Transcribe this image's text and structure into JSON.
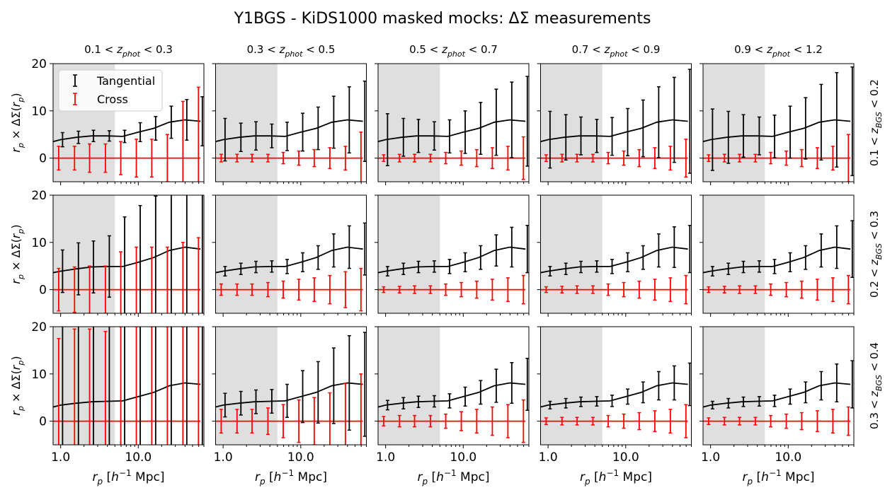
{
  "title": "Y1BGS - KiDS1000 masked mocks: ΔΣ measurements",
  "col_labels": [
    "0.1 < z_phot < 0.3",
    "0.3 < z_phot < 0.5",
    "0.5 < z_phot < 0.7",
    "0.7 < z_phot < 0.9",
    "0.9 < z_phot < 1.2"
  ],
  "row_labels": [
    "0.1 < z_BGS < 0.2",
    "0.2 < z_BGS < 0.3",
    "0.3 < z_BGS < 0.4"
  ],
  "xlabel": "r_p [h^-1 Mpc]",
  "ylabel": "r_p × ΔΣ(r_p)",
  "x_ticks": [
    "1.0",
    "10.0"
  ],
  "y_ticks": [
    "0",
    "10",
    "20"
  ],
  "legend": {
    "tangential": "Tangential",
    "cross": "Cross"
  },
  "colors": {
    "tangential": "#000000",
    "cross": "#ff0000",
    "shade": "#dddddd"
  },
  "chart_data": {
    "type": "line",
    "xscale": "log",
    "xlim": [
      0.8,
      70
    ],
    "ylim": [
      -5,
      20
    ],
    "shade_xmax": 5.0,
    "x": [
      1.0,
      1.6,
      2.5,
      4.0,
      6.3,
      10.0,
      15.8,
      25.1,
      39.8,
      63.1
    ],
    "model_x": [
      0.8,
      1.0,
      1.6,
      2.5,
      4.0,
      6.3,
      10.0,
      15.8,
      25.1,
      39.8,
      63.1
    ],
    "model": [
      [
        3.5,
        3.9,
        4.4,
        4.7,
        4.7,
        4.6,
        5.5,
        6.3,
        7.6,
        8.1,
        7.8
      ],
      [
        3.6,
        3.9,
        4.4,
        4.8,
        4.9,
        4.9,
        5.8,
        6.8,
        8.3,
        9.0,
        8.6
      ],
      [
        3.0,
        3.4,
        3.8,
        4.1,
        4.2,
        4.3,
        5.2,
        6.1,
        7.5,
        8.1,
        7.8
      ]
    ],
    "tangential_err": [
      [
        [
          1.5,
          1.3,
          1.2,
          1.1,
          1.3,
          2.0,
          2.5,
          3.4,
          4.3,
          5.2
        ],
        [
          4.5,
          3.0,
          3.0,
          2.5,
          3.0,
          4.0,
          4.5,
          5.5,
          7.0,
          8.5
        ],
        [
          5.5,
          4.0,
          3.5,
          3.0,
          3.5,
          4.5,
          5.5,
          7.0,
          8.0,
          9.5
        ],
        [
          6.0,
          4.8,
          4.0,
          3.5,
          4.0,
          5.0,
          6.0,
          7.5,
          9.0,
          11.0
        ],
        [
          6.5,
          5.5,
          4.5,
          4.0,
          4.5,
          5.5,
          6.5,
          8.0,
          10.0,
          11.5
        ]
      ],
      [
        [
          4.5,
          5.5,
          5.5,
          6.5,
          10.5,
          12.0,
          13.0,
          15.0,
          16.0,
          16.0
        ],
        [
          1.0,
          1.2,
          1.2,
          1.2,
          1.5,
          2.0,
          2.5,
          3.5,
          4.5,
          5.5
        ],
        [
          1.0,
          1.2,
          1.2,
          1.2,
          1.5,
          2.0,
          2.5,
          3.3,
          4.2,
          5.0
        ],
        [
          1.0,
          1.2,
          1.2,
          1.2,
          1.5,
          2.0,
          2.5,
          3.5,
          4.3,
          5.0
        ],
        [
          1.0,
          1.2,
          1.2,
          1.2,
          1.5,
          2.0,
          2.5,
          3.5,
          4.5,
          6.0
        ]
      ],
      [
        [
          20,
          20,
          20,
          20,
          20,
          20,
          20,
          20,
          20,
          20
        ],
        [
          2.5,
          2.5,
          2.5,
          2.5,
          3.5,
          5.5,
          6.5,
          8.0,
          10.0,
          11.0
        ],
        [
          1.0,
          1.2,
          1.2,
          1.2,
          1.5,
          2.0,
          2.5,
          3.5,
          4.3,
          5.5
        ],
        [
          0.8,
          1.0,
          1.0,
          1.0,
          1.2,
          1.6,
          2.2,
          3.0,
          3.6,
          4.5
        ],
        [
          0.8,
          1.0,
          1.0,
          1.0,
          1.2,
          1.6,
          2.2,
          3.0,
          4.0,
          5.0
        ]
      ]
    ],
    "cross_err": [
      [
        [
          2.5,
          2.5,
          3.0,
          3.0,
          3.5,
          4.0,
          4.0,
          5.0,
          12.0,
          15.0
        ],
        [
          0.8,
          0.8,
          0.8,
          0.8,
          1.2,
          1.5,
          1.8,
          2.2,
          2.5,
          5.5
        ],
        [
          0.7,
          0.8,
          0.8,
          0.8,
          1.2,
          1.5,
          1.8,
          2.2,
          2.5,
          4.5
        ],
        [
          0.7,
          0.8,
          0.8,
          0.8,
          1.2,
          1.5,
          1.8,
          2.2,
          2.5,
          4.0
        ],
        [
          0.7,
          0.8,
          0.8,
          0.8,
          1.2,
          1.5,
          1.8,
          2.2,
          2.5,
          5.0
        ]
      ],
      [
        [
          4.5,
          4.8,
          5.0,
          5.0,
          8.0,
          9.0,
          9.0,
          9.0,
          10.0,
          11.0
        ],
        [
          1.2,
          1.2,
          1.2,
          1.5,
          1.8,
          2.2,
          2.5,
          3.0,
          3.8,
          4.5
        ],
        [
          0.6,
          0.7,
          0.8,
          0.8,
          1.2,
          1.5,
          1.8,
          2.2,
          2.5,
          3.0
        ],
        [
          0.6,
          0.7,
          0.8,
          0.8,
          1.2,
          1.5,
          1.8,
          2.2,
          2.5,
          3.0
        ],
        [
          0.6,
          0.7,
          0.8,
          0.8,
          1.2,
          1.5,
          1.8,
          2.2,
          2.5,
          3.0
        ]
      ],
      [
        [
          17.5,
          19.5,
          19.5,
          19.0,
          20,
          20,
          20,
          20,
          20,
          20
        ],
        [
          2.5,
          2.5,
          2.5,
          2.8,
          3.5,
          4.5,
          5.0,
          6.0,
          8.0,
          10.0
        ],
        [
          1.0,
          1.2,
          1.2,
          1.2,
          1.5,
          2.0,
          2.5,
          3.0,
          3.5,
          4.5
        ],
        [
          0.7,
          0.8,
          0.8,
          0.8,
          1.2,
          1.5,
          1.8,
          2.2,
          2.5,
          3.5
        ],
        [
          0.7,
          0.8,
          0.8,
          0.8,
          1.2,
          1.5,
          1.8,
          2.2,
          2.5,
          3.0
        ]
      ]
    ]
  }
}
